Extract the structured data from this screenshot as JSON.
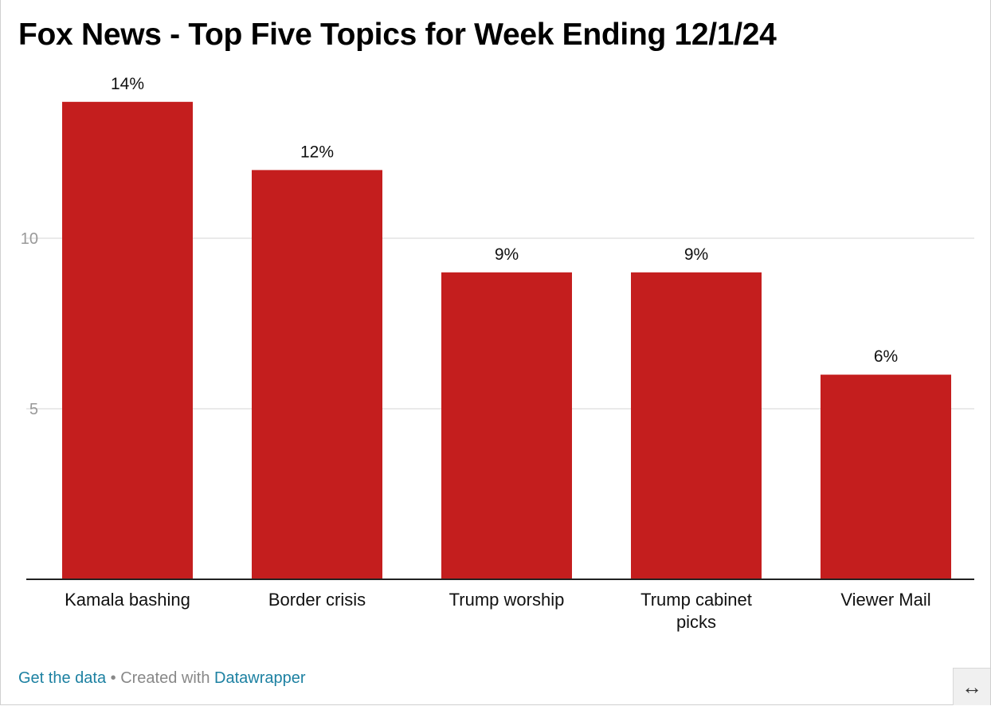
{
  "title": "Fox News - Top Five Topics for Week Ending 12/1/24",
  "footer": {
    "get_data": "Get the data",
    "separator": " • Created with ",
    "tool": "Datawrapper"
  },
  "expand_icon": "↔",
  "colors": {
    "bar": "#c41e1e",
    "grid": "#e3e3e3",
    "axis": "#222222",
    "tick_text": "#999999",
    "link": "#1d81a2"
  },
  "chart_data": {
    "type": "bar",
    "categories": [
      "Kamala bashing",
      "Border crisis",
      "Trump worship",
      "Trump cabinet picks",
      "Viewer Mail"
    ],
    "values": [
      14,
      12,
      9,
      9,
      6
    ],
    "value_labels": [
      "14%",
      "12%",
      "9%",
      "9%",
      "6%"
    ],
    "ylim": [
      0,
      16
    ],
    "yticks": [
      5,
      10
    ],
    "grid": true,
    "legend": "none"
  }
}
